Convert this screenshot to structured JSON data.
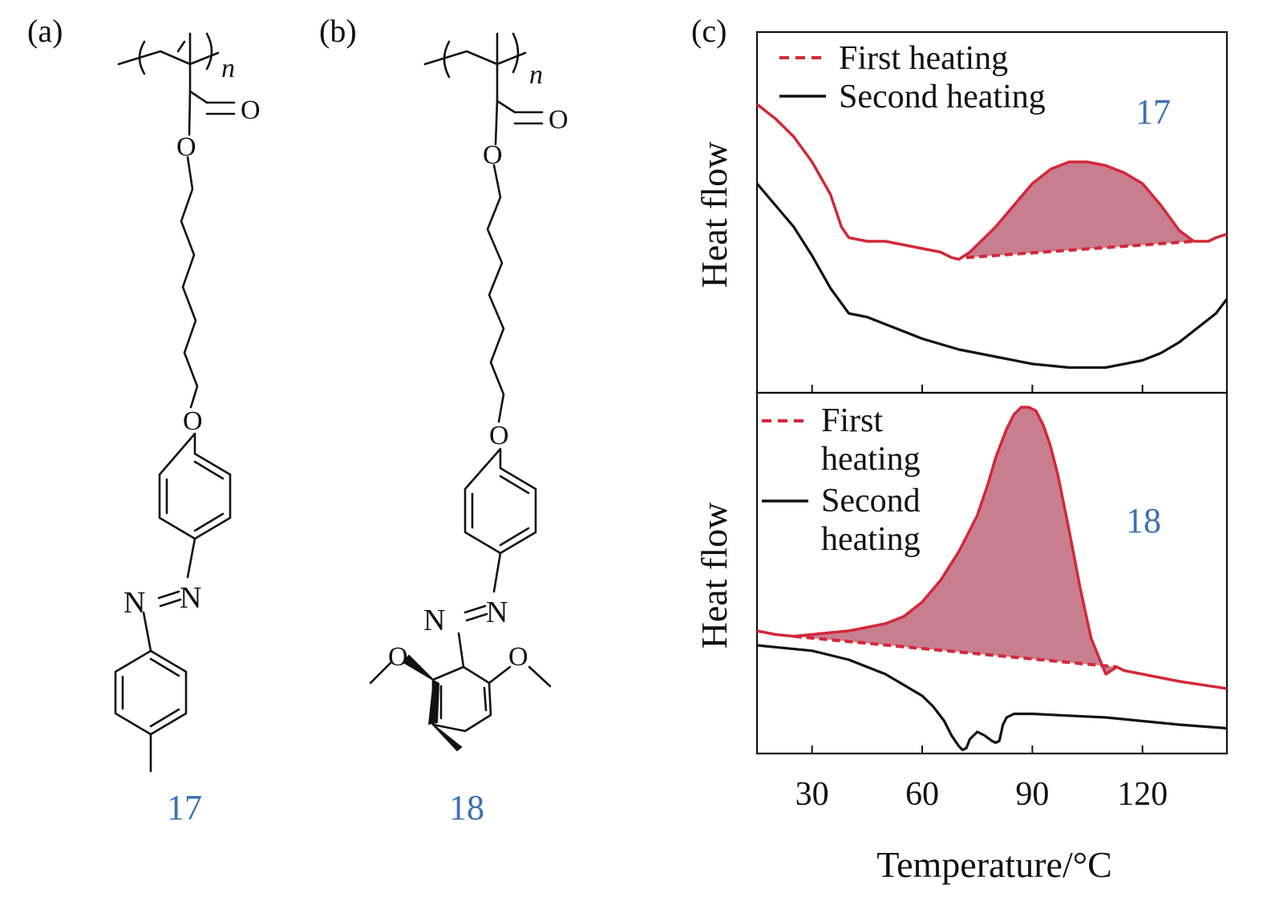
{
  "panel_labels": [
    "(a)",
    "(b)",
    "(c)"
  ],
  "molecules": {
    "a": {
      "compound_id": "17",
      "repeat_subscript": "n",
      "atoms": {
        "carbonyl_o": "O",
        "ester_o": "O",
        "ether_o": "O",
        "azo_n1": "N",
        "azo_n2": "N"
      }
    },
    "b": {
      "compound_id": "18",
      "repeat_subscript": "n",
      "atoms": {
        "carbonyl_o": "O",
        "ester_o": "O",
        "ether_o": "O",
        "azo_n1": "N",
        "azo_n2": "N",
        "methoxy_o1": "O",
        "methoxy_o2": "O"
      }
    }
  },
  "colors": {
    "first_heating": "#d2283a",
    "second_heating": "#111111",
    "fill": "#c0677c",
    "compound_label": "#3b6fb6"
  },
  "chart_data": [
    {
      "type": "line",
      "panel": "top",
      "compound": "17",
      "xlabel": "Temperature/°C",
      "ylabel": "Heat flow",
      "xlim": [
        15,
        143
      ],
      "ylim": [
        0,
        1
      ],
      "xticks": [
        30,
        60,
        90,
        120
      ],
      "legend": [
        "First heating",
        "Second heating"
      ],
      "legend_position": "top-left",
      "series": [
        {
          "name": "First heating",
          "style": "solid",
          "x": [
            15,
            20,
            25,
            30,
            35,
            38,
            40,
            45,
            50,
            55,
            60,
            65,
            68,
            70,
            73,
            76,
            80,
            85,
            90,
            95,
            100,
            105,
            110,
            115,
            120,
            125,
            130,
            134,
            138,
            140,
            143
          ],
          "y": [
            0.8,
            0.76,
            0.71,
            0.64,
            0.55,
            0.46,
            0.43,
            0.42,
            0.42,
            0.41,
            0.4,
            0.39,
            0.375,
            0.37,
            0.39,
            0.42,
            0.46,
            0.52,
            0.58,
            0.62,
            0.64,
            0.64,
            0.63,
            0.61,
            0.58,
            0.52,
            0.45,
            0.42,
            0.42,
            0.43,
            0.44
          ]
        },
        {
          "name": "First heating baseline",
          "style": "dashed",
          "x": [
            72,
            134
          ],
          "y": [
            0.375,
            0.42
          ]
        },
        {
          "name": "Second heating",
          "style": "solid",
          "x": [
            15,
            20,
            25,
            30,
            35,
            40,
            45,
            50,
            60,
            70,
            80,
            90,
            100,
            110,
            120,
            125,
            130,
            135,
            140,
            143
          ],
          "y": [
            0.58,
            0.52,
            0.46,
            0.38,
            0.29,
            0.22,
            0.21,
            0.19,
            0.15,
            0.12,
            0.1,
            0.08,
            0.07,
            0.07,
            0.09,
            0.11,
            0.14,
            0.18,
            0.22,
            0.26
          ]
        }
      ]
    },
    {
      "type": "line",
      "panel": "bottom",
      "compound": "18",
      "xlabel": "Temperature/°C",
      "ylabel": "Heat flow",
      "xlim": [
        15,
        143
      ],
      "ylim": [
        0,
        1
      ],
      "xticks": [
        30,
        60,
        90,
        120
      ],
      "tick_labels": [
        "30",
        "60",
        "90",
        "120"
      ],
      "legend": [
        "First heating",
        "Second heating"
      ],
      "legend_position": "top-left",
      "series": [
        {
          "name": "First heating",
          "style": "solid",
          "x": [
            15,
            20,
            25,
            30,
            40,
            50,
            55,
            60,
            65,
            70,
            75,
            78,
            80,
            83,
            85,
            87,
            89,
            91,
            93,
            95,
            97,
            100,
            103,
            106,
            110,
            113,
            115,
            120,
            130,
            143
          ],
          "y": [
            0.34,
            0.33,
            0.325,
            0.33,
            0.34,
            0.36,
            0.38,
            0.42,
            0.48,
            0.56,
            0.66,
            0.75,
            0.82,
            0.9,
            0.94,
            0.96,
            0.96,
            0.95,
            0.91,
            0.85,
            0.77,
            0.62,
            0.46,
            0.32,
            0.22,
            0.24,
            0.23,
            0.22,
            0.2,
            0.18
          ]
        },
        {
          "name": "First heating baseline",
          "style": "dashed",
          "x": [
            25,
            113
          ],
          "y": [
            0.325,
            0.24
          ]
        },
        {
          "name": "Second heating",
          "style": "solid",
          "x": [
            15,
            20,
            30,
            40,
            50,
            55,
            60,
            63,
            66,
            68,
            70,
            71,
            72,
            73,
            75,
            77,
            79,
            80,
            81,
            82,
            83,
            85,
            90,
            100,
            110,
            120,
            130,
            143
          ],
          "y": [
            0.3,
            0.295,
            0.285,
            0.26,
            0.22,
            0.19,
            0.16,
            0.13,
            0.09,
            0.05,
            0.02,
            0.01,
            0.015,
            0.04,
            0.06,
            0.05,
            0.035,
            0.03,
            0.035,
            0.08,
            0.1,
            0.11,
            0.11,
            0.105,
            0.1,
            0.09,
            0.08,
            0.07
          ]
        }
      ]
    }
  ]
}
